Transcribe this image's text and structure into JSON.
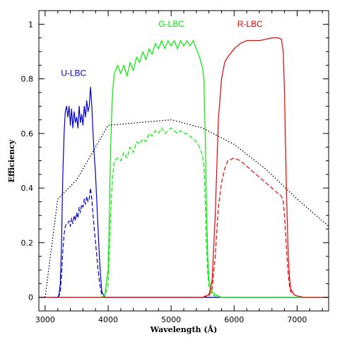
{
  "chart_data": {
    "type": "line",
    "title": "",
    "xlabel": "Wavelength (Å)",
    "ylabel": "Efficiency",
    "xlim": [
      2900,
      7500
    ],
    "ylim": [
      -0.05,
      1.05
    ],
    "xticks": [
      3000,
      4000,
      5000,
      6000,
      7000
    ],
    "yticks": [
      0,
      0.2,
      0.4,
      0.6,
      0.8,
      1
    ],
    "ytick_labels": [
      "0",
      "0.2",
      "0.4",
      "0.6",
      "0.8",
      "1"
    ],
    "grid": false,
    "legend": "none",
    "series": [
      {
        "name": "U-LBC",
        "color": "#0000cc",
        "style": "solid",
        "label_at": [
          3250,
          0.81
        ],
        "x": [
          3100,
          3200,
          3220,
          3240,
          3260,
          3280,
          3300,
          3320,
          3340,
          3360,
          3380,
          3400,
          3420,
          3440,
          3460,
          3480,
          3500,
          3520,
          3540,
          3560,
          3580,
          3600,
          3620,
          3640,
          3660,
          3680,
          3700,
          3720,
          3740,
          3760,
          3780,
          3800,
          3820,
          3840,
          3860,
          3880,
          3900,
          3950,
          4100,
          7500
        ],
        "y": [
          0,
          0,
          0.01,
          0.05,
          0.2,
          0.45,
          0.6,
          0.68,
          0.7,
          0.66,
          0.7,
          0.63,
          0.69,
          0.62,
          0.68,
          0.64,
          0.66,
          0.62,
          0.7,
          0.64,
          0.67,
          0.63,
          0.7,
          0.66,
          0.72,
          0.68,
          0.7,
          0.77,
          0.7,
          0.6,
          0.52,
          0.45,
          0.35,
          0.25,
          0.15,
          0.08,
          0.02,
          0,
          0,
          0
        ]
      },
      {
        "name": "",
        "color": "#0000cc",
        "style": "dashed",
        "x": [
          3100,
          3200,
          3220,
          3240,
          3260,
          3280,
          3300,
          3320,
          3340,
          3360,
          3380,
          3400,
          3420,
          3440,
          3460,
          3480,
          3500,
          3520,
          3540,
          3560,
          3580,
          3600,
          3620,
          3640,
          3660,
          3680,
          3700,
          3720,
          3740,
          3760,
          3780,
          3800,
          3820,
          3840,
          3860,
          3880,
          3900,
          3950,
          4100
        ],
        "y": [
          0,
          0,
          0.005,
          0.02,
          0.08,
          0.17,
          0.23,
          0.26,
          0.27,
          0.27,
          0.28,
          0.26,
          0.29,
          0.27,
          0.3,
          0.28,
          0.31,
          0.29,
          0.33,
          0.31,
          0.34,
          0.33,
          0.36,
          0.34,
          0.37,
          0.35,
          0.36,
          0.4,
          0.36,
          0.3,
          0.25,
          0.2,
          0.15,
          0.1,
          0.06,
          0.03,
          0.01,
          0,
          0
        ]
      },
      {
        "name": "G-LBC",
        "color": "#00ee00",
        "style": "solid",
        "label_at": [
          4800,
          0.99
        ],
        "x": [
          3800,
          3900,
          3950,
          4000,
          4020,
          4040,
          4060,
          4080,
          4100,
          4150,
          4200,
          4250,
          4300,
          4350,
          4400,
          4450,
          4500,
          4550,
          4600,
          4650,
          4700,
          4750,
          4800,
          4850,
          4900,
          4950,
          5000,
          5050,
          5100,
          5150,
          5200,
          5250,
          5300,
          5350,
          5400,
          5450,
          5500,
          5520,
          5540,
          5560,
          5580,
          5600,
          5650,
          5700,
          5800,
          6000,
          7500
        ],
        "y": [
          0,
          0,
          0.01,
          0.1,
          0.3,
          0.55,
          0.7,
          0.78,
          0.82,
          0.85,
          0.82,
          0.85,
          0.81,
          0.86,
          0.83,
          0.88,
          0.86,
          0.9,
          0.87,
          0.91,
          0.89,
          0.93,
          0.91,
          0.94,
          0.91,
          0.94,
          0.92,
          0.94,
          0.91,
          0.94,
          0.92,
          0.94,
          0.92,
          0.94,
          0.91,
          0.88,
          0.84,
          0.8,
          0.6,
          0.35,
          0.15,
          0.06,
          0.02,
          0.01,
          0,
          0,
          0
        ]
      },
      {
        "name": "",
        "color": "#00ee00",
        "style": "dashed",
        "x": [
          3800,
          3900,
          3950,
          4000,
          4020,
          4040,
          4060,
          4080,
          4100,
          4150,
          4200,
          4250,
          4300,
          4350,
          4400,
          4450,
          4500,
          4550,
          4600,
          4650,
          4700,
          4750,
          4800,
          4850,
          4900,
          4950,
          5000,
          5050,
          5100,
          5150,
          5200,
          5250,
          5300,
          5350,
          5400,
          5450,
          5500,
          5520,
          5540,
          5560,
          5580,
          5600,
          5650,
          5700,
          5800
        ],
        "y": [
          0,
          0,
          0.005,
          0.05,
          0.15,
          0.3,
          0.4,
          0.46,
          0.5,
          0.51,
          0.5,
          0.53,
          0.51,
          0.55,
          0.53,
          0.57,
          0.56,
          0.58,
          0.57,
          0.6,
          0.59,
          0.61,
          0.6,
          0.62,
          0.6,
          0.61,
          0.62,
          0.61,
          0.6,
          0.61,
          0.6,
          0.6,
          0.59,
          0.58,
          0.57,
          0.55,
          0.52,
          0.48,
          0.36,
          0.2,
          0.09,
          0.04,
          0.01,
          0.005,
          0
        ]
      },
      {
        "name": "R-LBC",
        "color": "#ee0000",
        "style": "solid",
        "label_at": [
          6050,
          0.99
        ],
        "x": [
          2900,
          5500,
          5600,
          5650,
          5700,
          5750,
          5800,
          5850,
          5900,
          6000,
          6100,
          6200,
          6300,
          6400,
          6500,
          6600,
          6700,
          6750,
          6780,
          6800,
          6820,
          6840,
          6860,
          6880,
          6900,
          6950,
          7000,
          7100,
          7500
        ],
        "y": [
          0,
          0,
          0.01,
          0.06,
          0.3,
          0.65,
          0.8,
          0.86,
          0.88,
          0.91,
          0.93,
          0.94,
          0.94,
          0.94,
          0.945,
          0.95,
          0.95,
          0.945,
          0.9,
          0.75,
          0.5,
          0.3,
          0.15,
          0.07,
          0.03,
          0.01,
          0.005,
          0,
          0
        ]
      },
      {
        "name": "",
        "color": "#ee0000",
        "style": "dashed",
        "x": [
          5500,
          5600,
          5650,
          5700,
          5750,
          5800,
          5850,
          5900,
          6000,
          6100,
          6200,
          6300,
          6400,
          6500,
          6600,
          6700,
          6750,
          6780,
          6800,
          6820,
          6840,
          6860,
          6880,
          6900,
          6950,
          7000,
          7100
        ],
        "y": [
          0,
          0.005,
          0.03,
          0.15,
          0.33,
          0.42,
          0.47,
          0.5,
          0.51,
          0.5,
          0.48,
          0.46,
          0.44,
          0.42,
          0.4,
          0.38,
          0.37,
          0.35,
          0.3,
          0.22,
          0.14,
          0.08,
          0.04,
          0.02,
          0.01,
          0.005,
          0
        ]
      },
      {
        "name": "",
        "color": "#000000",
        "style": "dotted",
        "x": [
          3000,
          3200,
          3500,
          4000,
          4500,
          5000,
          5500,
          6000,
          6500,
          7000,
          7500
        ],
        "y": [
          0,
          0.36,
          0.43,
          0.63,
          0.64,
          0.65,
          0.62,
          0.56,
          0.47,
          0.36,
          0.26
        ]
      }
    ]
  }
}
